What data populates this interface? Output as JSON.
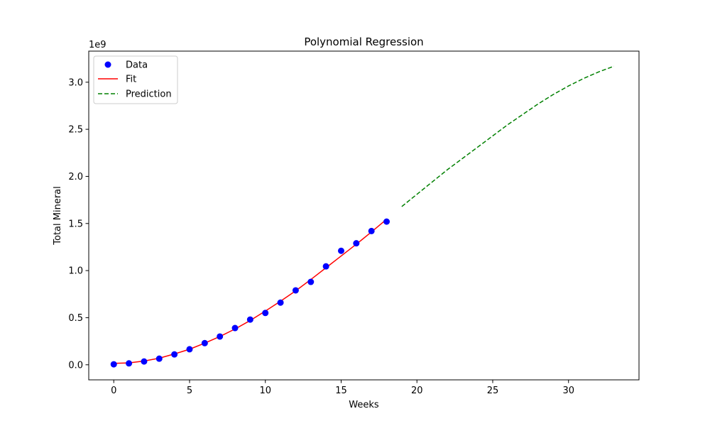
{
  "chart_data": {
    "type": "scatter",
    "title": "Polynomial Regression",
    "xlabel": "Weeks",
    "ylabel": "Total Mineral",
    "y_offset_label": "1e9",
    "xlim": [
      -1.65,
      34.65
    ],
    "ylim": [
      -0.16,
      3.33
    ],
    "x_ticks": [
      0,
      5,
      10,
      15,
      20,
      25,
      30
    ],
    "y_ticks": [
      0.0,
      0.5,
      1.0,
      1.5,
      2.0,
      2.5,
      3.0
    ],
    "x_tick_labels": [
      "0",
      "5",
      "10",
      "15",
      "20",
      "25",
      "30"
    ],
    "y_tick_labels": [
      "0.0",
      "0.5",
      "1.0",
      "1.5",
      "2.0",
      "2.5",
      "3.0"
    ],
    "grid": false,
    "legend_position": "top-left",
    "series": [
      {
        "name": "Data",
        "kind": "scatter",
        "color": "#0000ff",
        "x": [
          0,
          1,
          2,
          3,
          4,
          5,
          6,
          7,
          8,
          9,
          10,
          11,
          12,
          13,
          14,
          15,
          16,
          17,
          18
        ],
        "y": [
          0.005,
          0.015,
          0.035,
          0.065,
          0.11,
          0.165,
          0.23,
          0.3,
          0.39,
          0.48,
          0.55,
          0.66,
          0.79,
          0.88,
          1.045,
          1.21,
          1.29,
          1.42,
          1.52
        ]
      },
      {
        "name": "Fit",
        "kind": "line",
        "color": "#ff0000",
        "dash": "solid",
        "x": [
          0,
          1,
          2,
          3,
          4,
          5,
          6,
          7,
          8,
          9,
          10,
          11,
          12,
          13,
          14,
          15,
          16,
          17,
          18
        ],
        "y": [
          0.015,
          0.02,
          0.04,
          0.07,
          0.115,
          0.165,
          0.23,
          0.3,
          0.38,
          0.47,
          0.57,
          0.675,
          0.785,
          0.905,
          1.03,
          1.155,
          1.28,
          1.41,
          1.545
        ]
      },
      {
        "name": "Prediction",
        "kind": "line",
        "color": "#008000",
        "dash": "dashed",
        "x": [
          19,
          20,
          21,
          22,
          23,
          24,
          25,
          26,
          27,
          28,
          29,
          30,
          31,
          32,
          33
        ],
        "y": [
          1.68,
          1.81,
          1.94,
          2.07,
          2.19,
          2.31,
          2.43,
          2.55,
          2.66,
          2.77,
          2.87,
          2.96,
          3.04,
          3.11,
          3.17
        ]
      }
    ]
  }
}
